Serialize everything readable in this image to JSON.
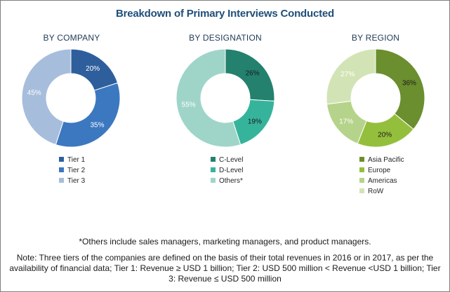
{
  "title": "Breakdown of Primary Interviews Conducted",
  "chart_data": [
    {
      "type": "pie",
      "title": "BY COMPANY",
      "categories": [
        "Tier 1",
        "Tier 2",
        "Tier 3"
      ],
      "values": [
        20,
        35,
        45
      ],
      "labels": [
        "20%",
        "35%",
        "45%"
      ],
      "colors": [
        "#2e5f9c",
        "#3b78c0",
        "#a7bddc"
      ],
      "label_colors": [
        "#ffffff",
        "#ffffff",
        "#ffffff"
      ],
      "legend_position": "bottom"
    },
    {
      "type": "pie",
      "title": "BY DESIGNATION",
      "categories": [
        "C-Level",
        "D-Level",
        "Others*"
      ],
      "values": [
        26,
        19,
        55
      ],
      "labels": [
        "26%",
        "19%",
        "55%"
      ],
      "colors": [
        "#23816e",
        "#36b49b",
        "#9fd5c8"
      ],
      "label_colors": [
        "#1a1a1a",
        "#1a1a1a",
        "#ffffff"
      ],
      "legend_position": "bottom"
    },
    {
      "type": "pie",
      "title": "BY REGION",
      "categories": [
        "Asia Pacific",
        "Europe",
        "Americas",
        "RoW"
      ],
      "values": [
        36,
        20,
        17,
        27
      ],
      "labels": [
        "36%",
        "20%",
        "17%",
        "27%"
      ],
      "colors": [
        "#6b8e2e",
        "#94bf3d",
        "#b5d38a",
        "#d2e4b5"
      ],
      "label_colors": [
        "#1a1a1a",
        "#1a1a1a",
        "#ffffff",
        "#ffffff"
      ],
      "legend_position": "bottom"
    }
  ],
  "footnote": "*Others include sales managers, marketing managers, and product managers.",
  "note": "Note: Three tiers of the companies are defined on the basis of their total revenues in 2016 or in 2017, as per the availability of financial data; Tier 1: Revenue ≥ USD 1 billion; Tier 2: USD 500 million < Revenue <USD 1 billion; Tier 3: Revenue ≤ USD 500 million"
}
